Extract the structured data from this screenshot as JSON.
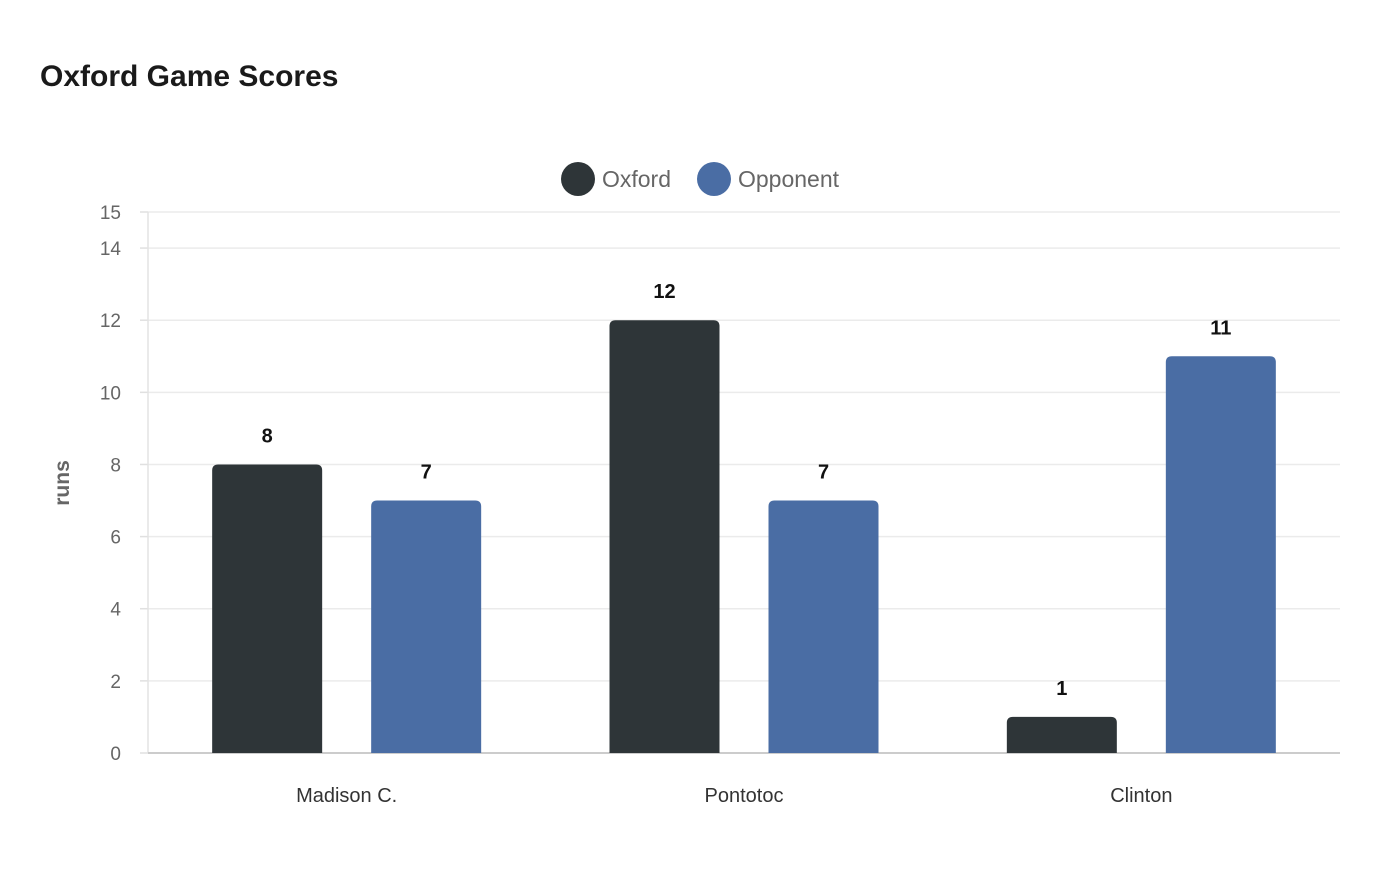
{
  "chart": {
    "title": "Oxford Game Scores",
    "ylabel": "runs",
    "legend": [
      {
        "label": "Oxford",
        "color": "#2e3538"
      },
      {
        "label": "Opponent",
        "color": "#4a6da4"
      }
    ]
  },
  "chart_data": {
    "type": "bar",
    "title": "Oxford Game Scores",
    "xlabel": "",
    "ylabel": "runs",
    "categories": [
      "Madison C.",
      "Pontotoc",
      "Clinton"
    ],
    "series": [
      {
        "name": "Oxford",
        "color": "#2e3538",
        "values": [
          8,
          12,
          1
        ]
      },
      {
        "name": "Opponent",
        "color": "#4a6da4",
        "values": [
          7,
          7,
          11
        ]
      }
    ],
    "ylim": [
      0,
      15
    ],
    "yticks": [
      0,
      2,
      4,
      6,
      8,
      10,
      12,
      14,
      15
    ],
    "grid": true,
    "legend_position": "top-center",
    "data_labels": true
  }
}
